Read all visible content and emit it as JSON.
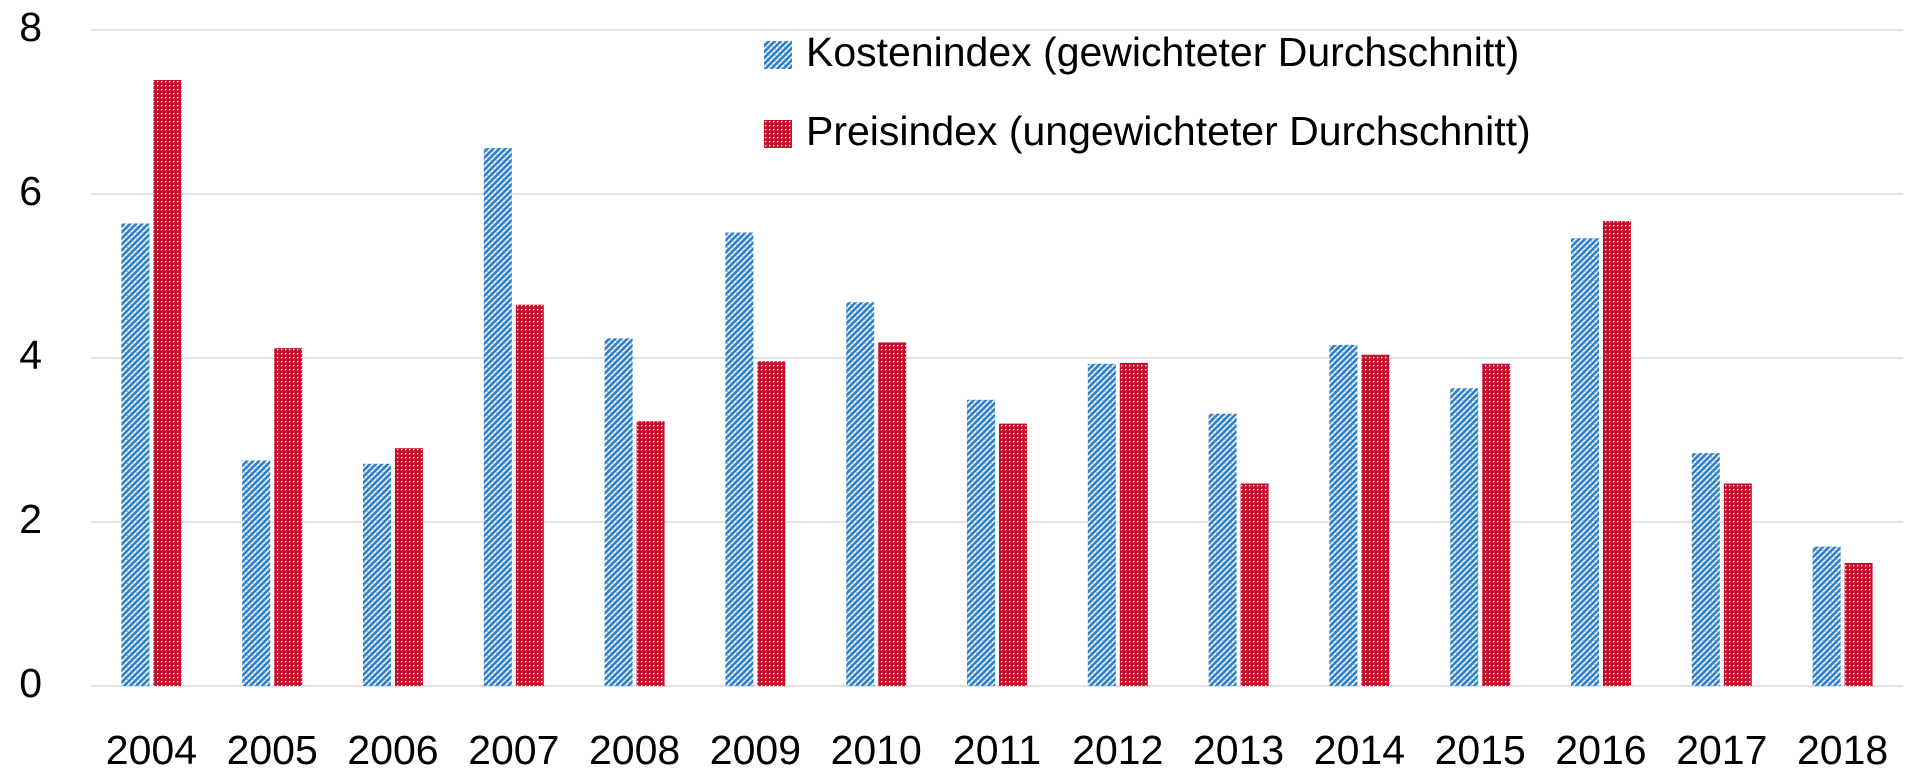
{
  "chart_data": {
    "type": "bar",
    "categories": [
      "2004",
      "2005",
      "2006",
      "2007",
      "2008",
      "2009",
      "2010",
      "2011",
      "2012",
      "2013",
      "2014",
      "2015",
      "2016",
      "2017",
      "2018"
    ],
    "series": [
      {
        "name": "Kostenindex (gewichteter Durchschnitt)",
        "color": "#2f80cc",
        "values": [
          5.64,
          2.75,
          2.71,
          6.56,
          4.24,
          5.53,
          4.68,
          3.49,
          3.93,
          3.32,
          4.16,
          3.63,
          5.46,
          2.84,
          1.7
        ]
      },
      {
        "name": "Preisindex (ungewichteter Durchschnitt)",
        "color": "#c8102e",
        "values": [
          7.39,
          4.12,
          2.9,
          4.65,
          3.23,
          3.96,
          4.19,
          3.2,
          3.94,
          2.47,
          4.04,
          3.93,
          5.67,
          2.47,
          1.5
        ]
      }
    ],
    "ylim": [
      0,
      8
    ],
    "yticks": [
      0,
      2,
      4,
      6,
      8
    ],
    "grid": true
  }
}
